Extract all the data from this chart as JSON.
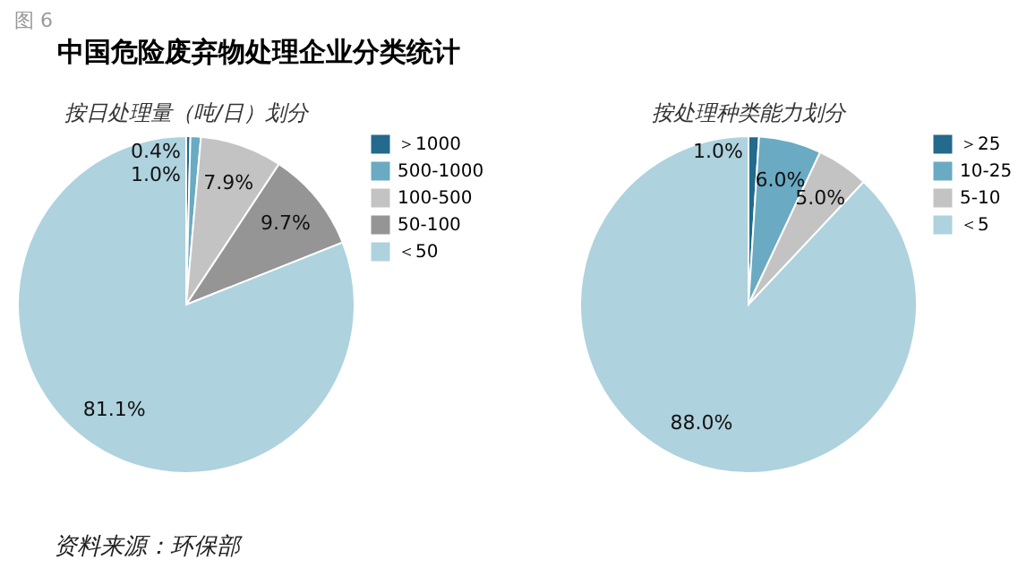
{
  "chart_data": [
    {
      "type": "pie",
      "title": "按日处理量（吨/日）划分",
      "categories": [
        "＞1000",
        "500-1000",
        "100-500",
        "50-100",
        "＜50"
      ],
      "values": [
        0.4,
        1.0,
        7.9,
        9.7,
        81.1
      ],
      "colors": [
        "#236a8c",
        "#6aaac3",
        "#c3c3c3",
        "#959595",
        "#aed2de"
      ],
      "value_labels": [
        "0.4%",
        "1.0%",
        "7.9%",
        "9.7%",
        "81.1%"
      ],
      "legend": "right",
      "annotations": [
        "图 6",
        "中国危险废弃物处理企业分类统计",
        "资料来源：环保部"
      ]
    },
    {
      "type": "pie",
      "title": "按处理种类能力划分",
      "categories": [
        "＞25",
        "10-25",
        "5-10",
        "＜5"
      ],
      "values": [
        1.0,
        6.0,
        5.0,
        88.0
      ],
      "colors": [
        "#236a8c",
        "#6aaac3",
        "#c3c3c3",
        "#aed2de"
      ],
      "value_labels": [
        "1.0%",
        "6.0%",
        "5.0%",
        "88.0%"
      ],
      "legend": "right"
    }
  ]
}
